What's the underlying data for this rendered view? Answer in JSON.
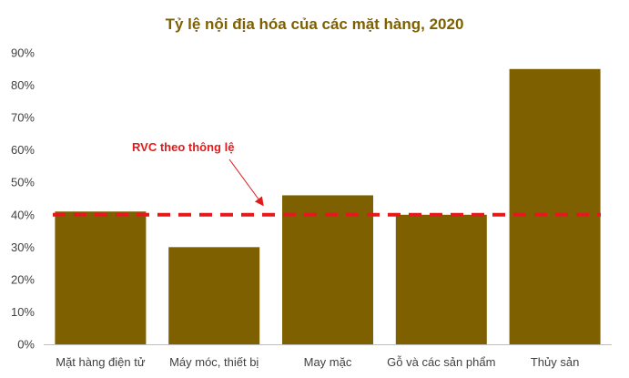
{
  "chart_data": {
    "type": "bar",
    "title": "Tỷ lệ nội địa hóa của các mặt hàng, 2020",
    "categories": [
      "Mặt hàng điện tử",
      "Máy móc, thiết bị",
      "May mặc",
      "Gỗ và các sản phẩm",
      "Thủy sản"
    ],
    "values": [
      41,
      30,
      46,
      40,
      85
    ],
    "value_unit": "%",
    "ylim": [
      0,
      90
    ],
    "yticks": [
      0,
      10,
      20,
      30,
      40,
      50,
      60,
      70,
      80,
      90
    ],
    "ytick_labels": [
      "0%",
      "10%",
      "20%",
      "30%",
      "40%",
      "50%",
      "60%",
      "70%",
      "80%",
      "90%"
    ],
    "grid": false,
    "legend": "none",
    "reference_line": {
      "value": 40,
      "style": "dashed",
      "color": "#e31a1c"
    },
    "annotation": {
      "text": "RVC theo thông lệ",
      "color": "#e31a1c",
      "arrow": true
    },
    "colors": {
      "bar": "#7f6000",
      "title": "#7f6000",
      "axis": "#bfbfbf"
    }
  }
}
